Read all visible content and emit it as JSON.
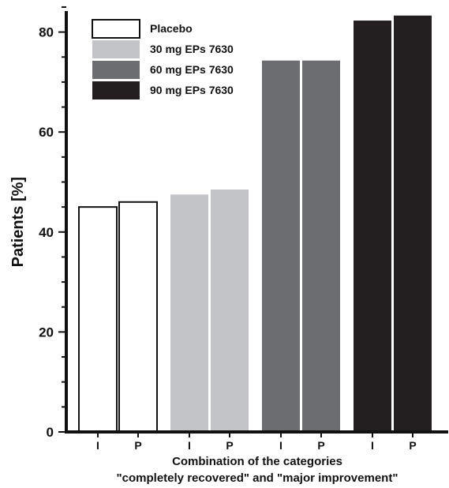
{
  "chart_data": {
    "type": "bar",
    "ylabel": "Patients [%]",
    "xlabel_lines": [
      "Combination of the categories",
      "\"completely recovered\" and \"major improvement\""
    ],
    "ylim": [
      0,
      85
    ],
    "yticks": [
      0,
      20,
      40,
      60,
      80
    ],
    "grid": false,
    "legend_position": "top-left",
    "categories": [
      "I",
      "P"
    ],
    "series": [
      {
        "name": "Placebo",
        "color": "#ffffff",
        "values": [
          45.0,
          46.0
        ]
      },
      {
        "name": "30 mg EPs 7630",
        "color": "#c3c4c7",
        "values": [
          47.5,
          48.5
        ]
      },
      {
        "name": "60 mg EPs 7630",
        "color": "#6c6d71",
        "values": [
          74.3,
          74.3
        ]
      },
      {
        "name": "90 mg EPs 7630",
        "color": "#231f20",
        "values": [
          82.3,
          83.3
        ]
      }
    ]
  }
}
